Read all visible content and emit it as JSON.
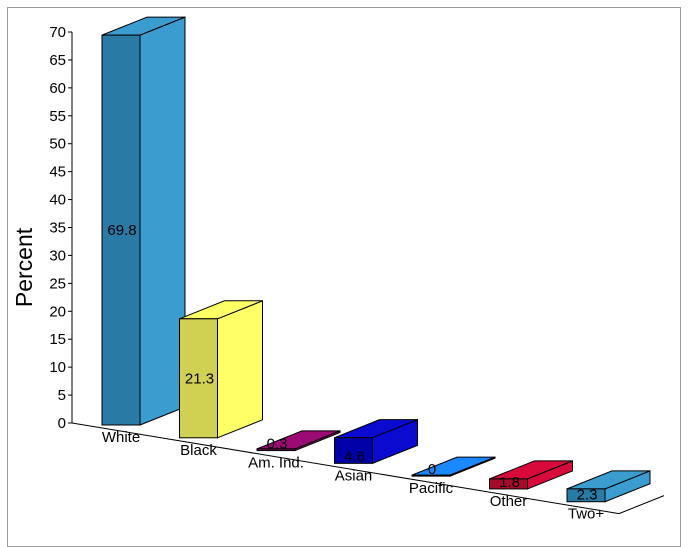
{
  "chart_data": {
    "type": "bar",
    "style": "3d",
    "categories": [
      "White",
      "Black",
      "Am. Ind.",
      "Asian",
      "Pacific",
      "Other",
      "Two+"
    ],
    "values": [
      69.8,
      21.3,
      0.3,
      4.6,
      0,
      1.8,
      2.3
    ],
    "value_labels": [
      "69.8",
      "21.3",
      "0.3",
      "4.6",
      "0",
      "1.8",
      "2.3"
    ],
    "ylabel": "Percent",
    "xlabel": "",
    "ylim": [
      0,
      70
    ],
    "yticks": [
      "0",
      "5",
      "10",
      "15",
      "20",
      "25",
      "30",
      "35",
      "40",
      "45",
      "50",
      "55",
      "60",
      "65",
      "70"
    ],
    "grid": false,
    "legend": "none",
    "colors": {
      "White": {
        "front": "#2a7aa6",
        "side": "#3a9ccf",
        "top": "#3a9ccf"
      },
      "Black": {
        "front": "#d0d052",
        "side": "#ffff66",
        "top": "#ffff66"
      },
      "Am. Ind.": {
        "front": "#7a0a5a",
        "side": "#9c0a74",
        "top": "#9c0a74"
      },
      "Asian": {
        "front": "#0000a8",
        "side": "#0a0ad0",
        "top": "#0a0ad0"
      },
      "Pacific": {
        "front": "#0a66e0",
        "side": "#1a88ff",
        "top": "#1a88ff"
      },
      "Other": {
        "front": "#a80a2a",
        "side": "#d80a3c",
        "top": "#d80a3c"
      },
      "Two+": {
        "front": "#2a7aa6",
        "side": "#3a9ccf",
        "top": "#3a9ccf"
      }
    }
  }
}
